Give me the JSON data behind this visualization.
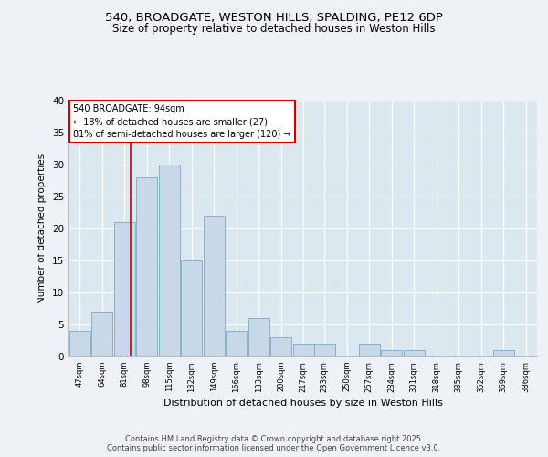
{
  "title1": "540, BROADGATE, WESTON HILLS, SPALDING, PE12 6DP",
  "title2": "Size of property relative to detached houses in Weston Hills",
  "xlabel": "Distribution of detached houses by size in Weston Hills",
  "ylabel": "Number of detached properties",
  "bin_labels": [
    "47sqm",
    "64sqm",
    "81sqm",
    "98sqm",
    "115sqm",
    "132sqm",
    "149sqm",
    "166sqm",
    "183sqm",
    "200sqm",
    "217sqm",
    "233sqm",
    "250sqm",
    "267sqm",
    "284sqm",
    "301sqm",
    "318sqm",
    "335sqm",
    "352sqm",
    "369sqm",
    "386sqm"
  ],
  "bin_edges": [
    47,
    64,
    81,
    98,
    115,
    132,
    149,
    166,
    183,
    200,
    217,
    233,
    250,
    267,
    284,
    301,
    318,
    335,
    352,
    369,
    386
  ],
  "values": [
    4,
    7,
    21,
    28,
    30,
    15,
    22,
    4,
    6,
    3,
    2,
    2,
    0,
    2,
    1,
    1,
    0,
    0,
    0,
    1,
    0
  ],
  "bar_color": "#c8d8e8",
  "bar_edge_color": "#7baac5",
  "property_line_x": 94,
  "property_line_color": "#cc0000",
  "annotation_text": "540 BROADGATE: 94sqm\n← 18% of detached houses are smaller (27)\n81% of semi-detached houses are larger (120) →",
  "annotation_box_color": "#ffffff",
  "annotation_box_edge": "#cc0000",
  "ylim": [
    0,
    40
  ],
  "yticks": [
    0,
    5,
    10,
    15,
    20,
    25,
    30,
    35,
    40
  ],
  "background_color": "#dce8f0",
  "fig_background": "#eef2f7",
  "footer1": "Contains HM Land Registry data © Crown copyright and database right 2025.",
  "footer2": "Contains public sector information licensed under the Open Government Licence v3.0."
}
